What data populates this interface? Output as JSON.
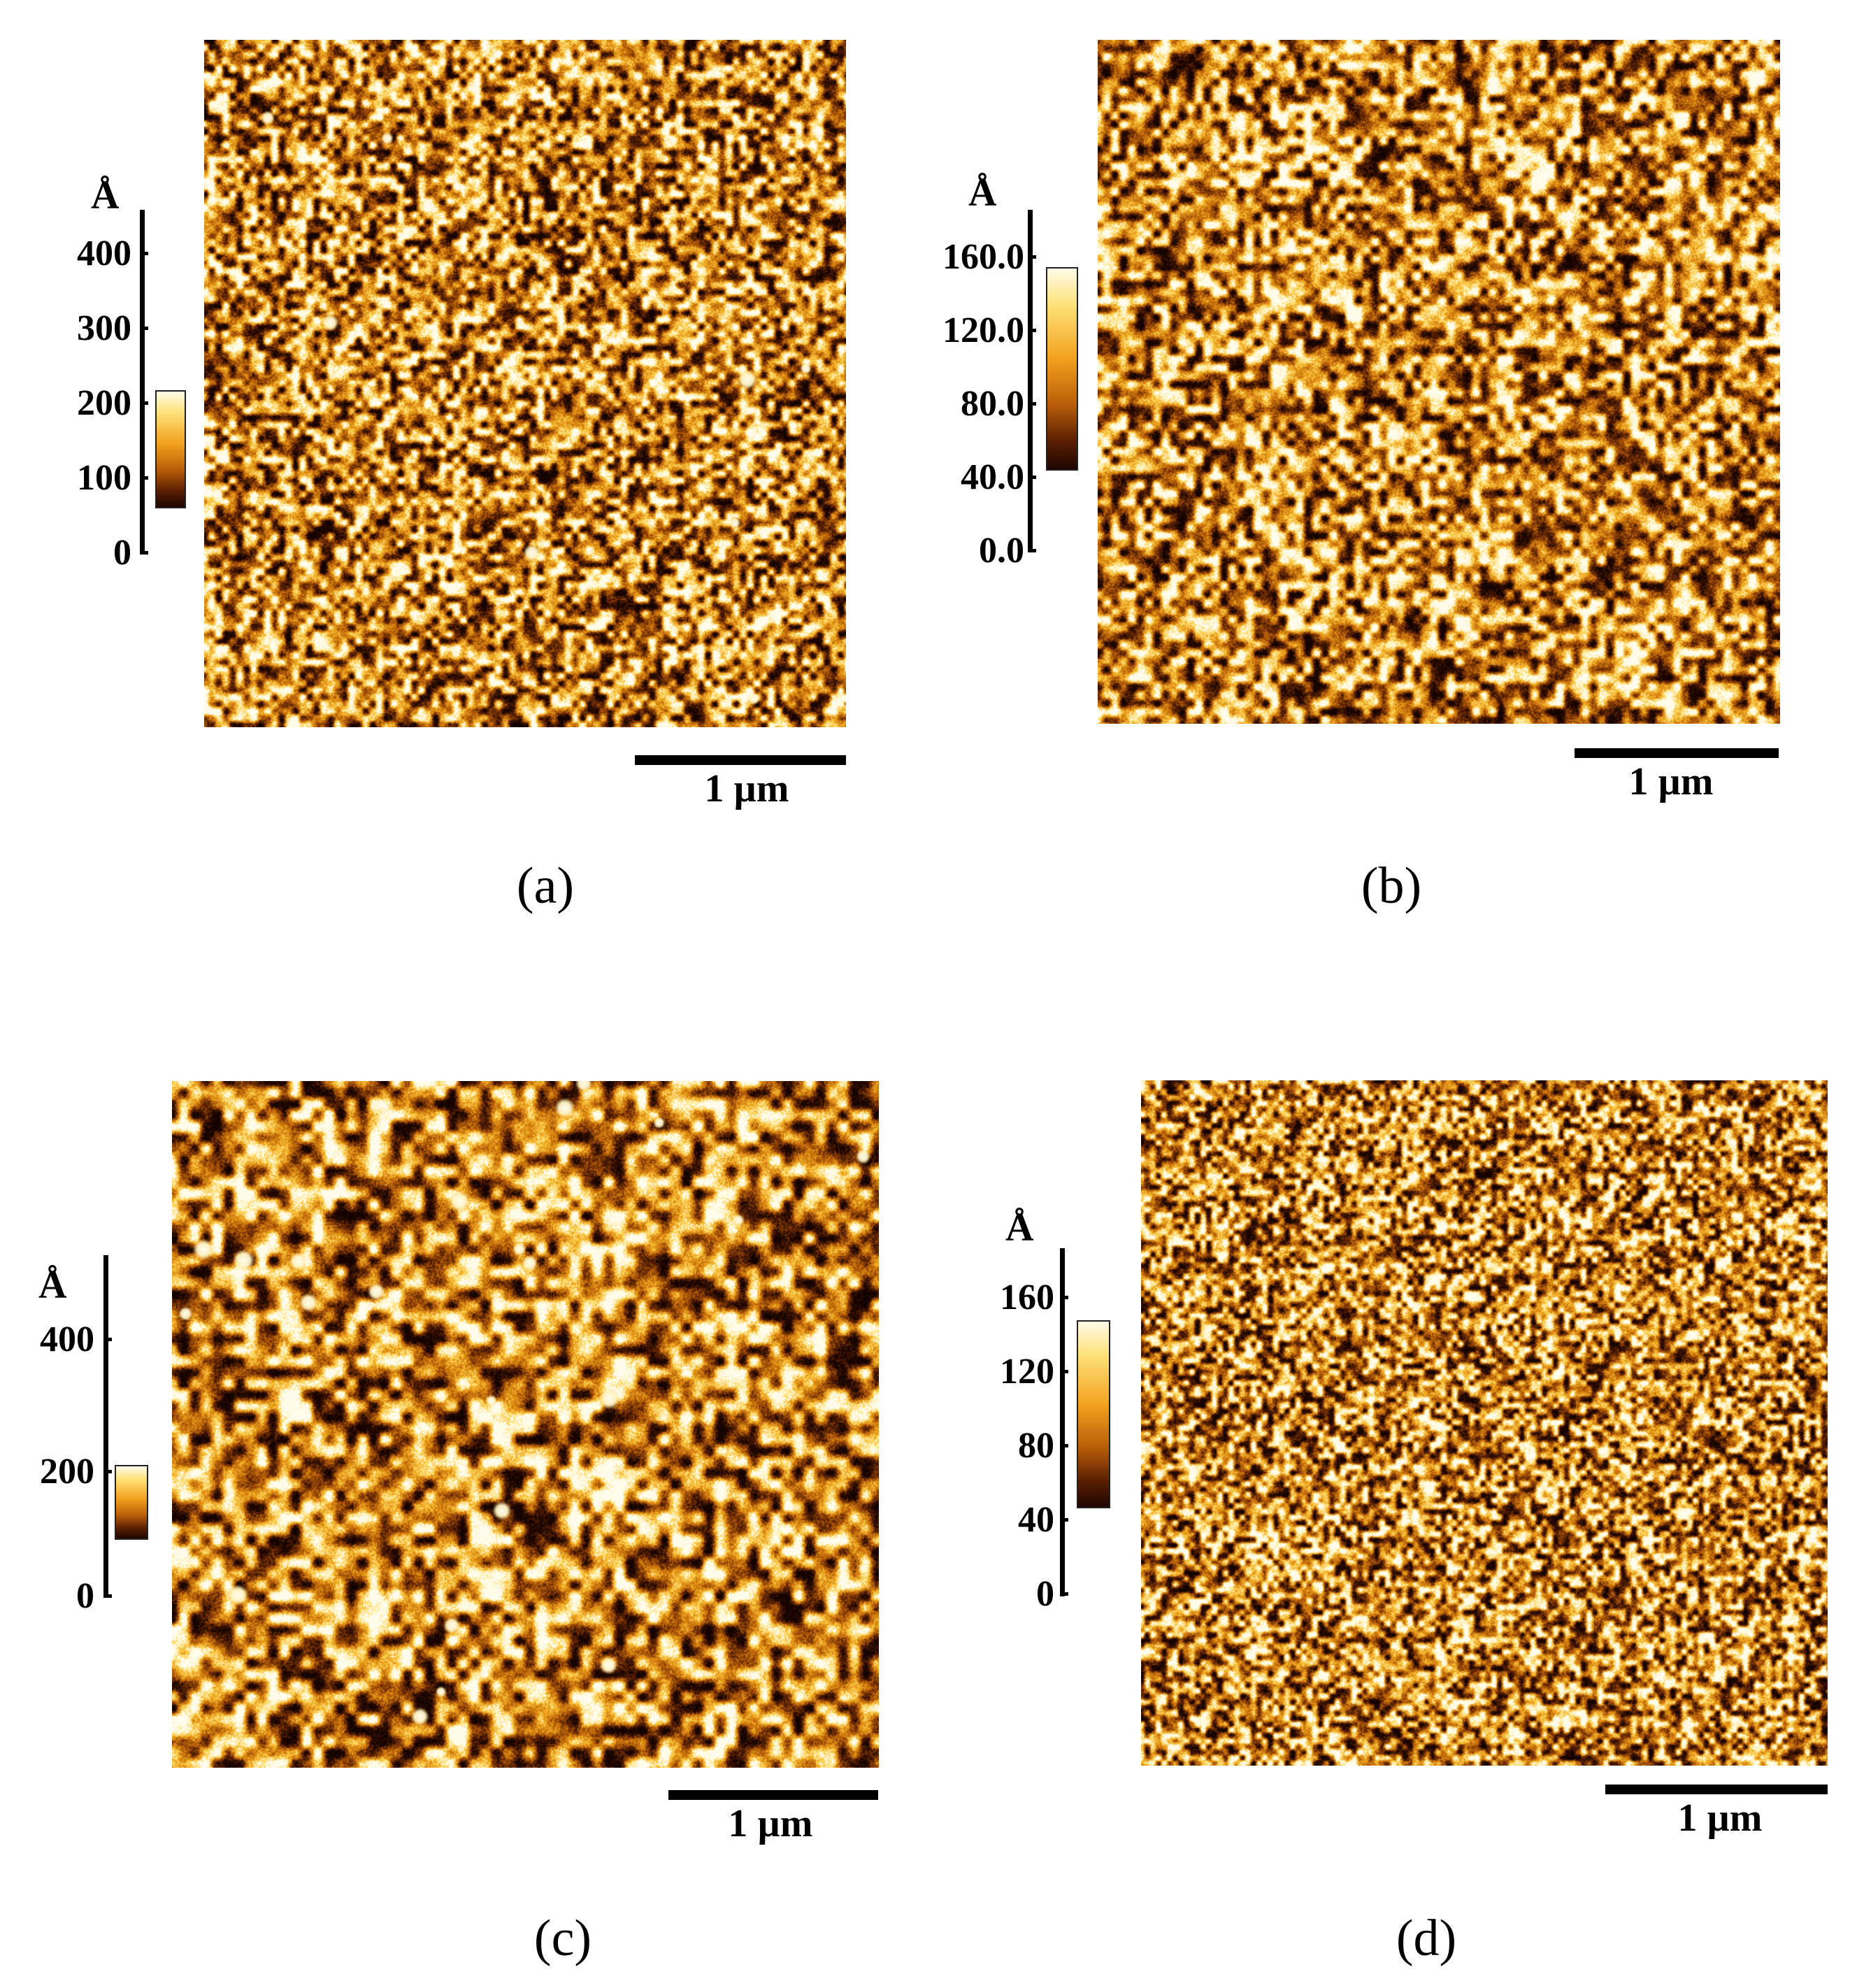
{
  "panels": [
    {
      "id": "a",
      "caption": "(a)",
      "unit": "Å",
      "ticks": [
        "400",
        "300",
        "200",
        "100",
        "0"
      ],
      "scale_bar_label": "1 µm",
      "features": "fine grains with scattered bright particles",
      "grain_size": 10,
      "bright_spots": 8
    },
    {
      "id": "b",
      "caption": "(b)",
      "unit": "Å",
      "ticks": [
        "160.0",
        "120.0",
        "80.0",
        "40.0",
        "0.0"
      ],
      "scale_bar_label": "1 µm",
      "features": "uniform fine granular surface",
      "grain_size": 11,
      "bright_spots": 0
    },
    {
      "id": "c",
      "caption": "(c)",
      "unit": "Å",
      "ticks": [
        "400",
        "200",
        "0"
      ],
      "scale_bar_label": "1 µm",
      "features": "coarse grains with bright round particles",
      "grain_size": 16,
      "bright_spots": 24
    },
    {
      "id": "d",
      "caption": "(d)",
      "unit": "Å",
      "ticks": [
        "160",
        "120",
        "80",
        "40",
        "0"
      ],
      "scale_bar_label": "1 µm",
      "features": "very fine dense granular surface",
      "grain_size": 7,
      "bright_spots": 0
    }
  ],
  "colors": {
    "dark": "#1f0500",
    "mid": "#d9830f",
    "light": "#ffe27a",
    "highlight": "#fffbe8"
  }
}
